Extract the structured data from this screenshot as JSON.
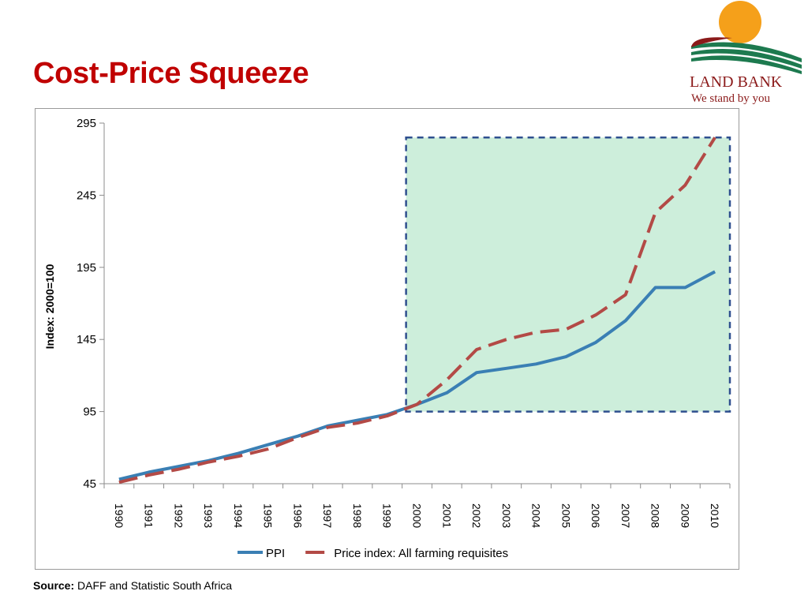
{
  "slide": {
    "title": "Cost-Price Squeeze",
    "source_label": "Source:",
    "source_text": "DAFF and Statistic  South  Africa"
  },
  "logo": {
    "name": "LAND BANK",
    "tagline": "We stand by you",
    "colors": {
      "sun": "#f5a01a",
      "green": "#1d7a4f",
      "maroon": "#8b1a1a"
    }
  },
  "chart_data": {
    "type": "line",
    "title": "",
    "xlabel": "",
    "ylabel": "Index: 2000=100",
    "categories": [
      "1990",
      "1991",
      "1992",
      "1993",
      "1994",
      "1995",
      "1996",
      "1997",
      "1998",
      "1999",
      "2000",
      "2001",
      "2002",
      "2003",
      "2004",
      "2005",
      "2006",
      "2007",
      "2008",
      "2009",
      "2010"
    ],
    "yticks": [
      45,
      95,
      145,
      195,
      245,
      295
    ],
    "ylim": [
      45,
      295
    ],
    "grid": false,
    "legend_position": "bottom",
    "series": [
      {
        "name": "PPI",
        "color": "#3a7fb4",
        "style": "solid",
        "values": [
          48,
          53,
          57,
          61,
          66,
          72,
          78,
          85,
          89,
          93,
          100,
          108,
          122,
          125,
          128,
          133,
          143,
          158,
          181,
          181,
          192
        ]
      },
      {
        "name": "Price index: All farming requisites",
        "color": "#b34a46",
        "style": "dashed",
        "values": [
          46,
          51,
          55,
          60,
          64,
          69,
          77,
          84,
          87,
          92,
          100,
          117,
          138,
          145,
          150,
          152,
          162,
          176,
          233,
          252,
          285
        ]
      }
    ],
    "highlight_box": {
      "x_from": "2000",
      "x_to": "2010",
      "y_from": 95,
      "y_to": 285,
      "fill": "#cdeedb",
      "border": "#2f4f8f"
    }
  }
}
